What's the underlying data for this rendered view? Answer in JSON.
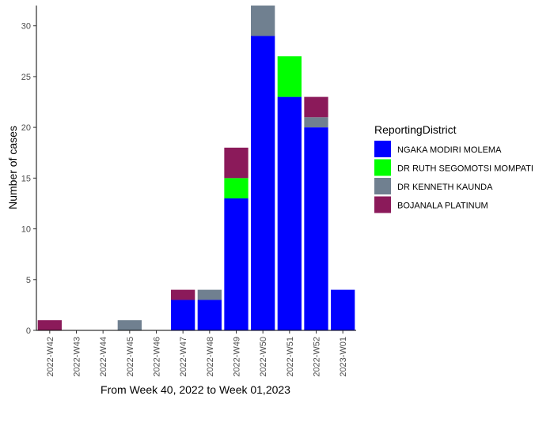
{
  "chart_data": {
    "type": "bar",
    "stacked": true,
    "xlabel": "From Week 40, 2022 to Week 01,2023",
    "ylabel": "Number of cases",
    "ylim": [
      0,
      32
    ],
    "yticks": [
      "0",
      "5",
      "10",
      "15",
      "20",
      "25",
      "30"
    ],
    "grid": false,
    "legend": {
      "title": "ReportingDistrict",
      "placement": "right"
    },
    "categories": [
      "2022-W42",
      "2022-W43",
      "2022-W44",
      "2022-W45",
      "2022-W46",
      "2022-W47",
      "2022-W48",
      "2022-W49",
      "2022-W50",
      "2022-W51",
      "2022-W52",
      "2023-W01"
    ],
    "series": [
      {
        "name": "NGAKA MODIRI MOLEMA",
        "color": "#0000FF",
        "values": [
          0,
          0,
          0,
          0,
          0,
          3,
          3,
          13,
          29,
          23,
          20,
          4
        ]
      },
      {
        "name": "DR RUTH SEGOMOTSI MOMPATI",
        "color": "#00FF00",
        "values": [
          0,
          0,
          0,
          0,
          0,
          0,
          0,
          2,
          0,
          4,
          0,
          0
        ]
      },
      {
        "name": "DR KENNETH KAUNDA",
        "color": "#708090",
        "values": [
          0,
          0,
          0,
          1,
          0,
          0,
          1,
          0,
          3,
          0,
          1,
          0
        ]
      },
      {
        "name": "BOJANALA PLATINUM",
        "color": "#8B1A5A",
        "values": [
          1,
          0,
          0,
          0,
          0,
          1,
          0,
          3,
          0,
          0,
          2,
          0
        ]
      }
    ]
  }
}
